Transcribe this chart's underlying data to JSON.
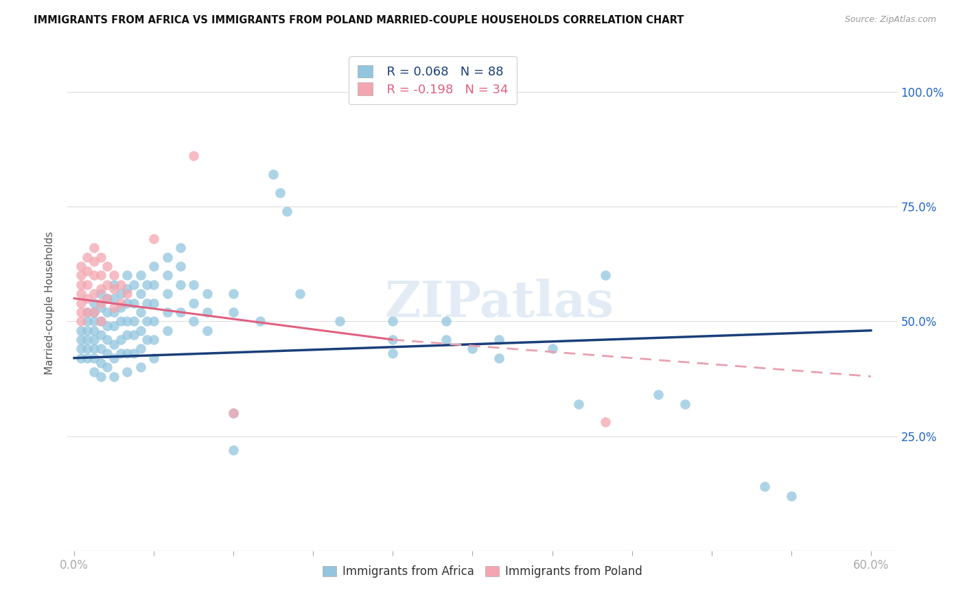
{
  "title": "IMMIGRANTS FROM AFRICA VS IMMIGRANTS FROM POLAND MARRIED-COUPLE HOUSEHOLDS CORRELATION CHART",
  "source": "Source: ZipAtlas.com",
  "ylabel": "Married-couple Households",
  "yticks": [
    0.0,
    0.25,
    0.5,
    0.75,
    1.0
  ],
  "ytick_labels": [
    "",
    "25.0%",
    "50.0%",
    "75.0%",
    "100.0%"
  ],
  "xticks": [
    0.0,
    0.06,
    0.12,
    0.18,
    0.24,
    0.3,
    0.36,
    0.42,
    0.48,
    0.54,
    0.6
  ],
  "xlim": [
    -0.005,
    0.62
  ],
  "ylim": [
    0.0,
    1.08
  ],
  "watermark": "ZIPatlas",
  "africa_color": "#92c5de",
  "poland_color": "#f4a6b0",
  "africa_line_color": "#1a3f7a",
  "poland_line_solid_color": "#e06080",
  "poland_line_dash_color": "#e8a0b0",
  "africa_scatter": [
    [
      0.005,
      0.48
    ],
    [
      0.005,
      0.46
    ],
    [
      0.005,
      0.44
    ],
    [
      0.005,
      0.42
    ],
    [
      0.01,
      0.52
    ],
    [
      0.01,
      0.5
    ],
    [
      0.01,
      0.48
    ],
    [
      0.01,
      0.46
    ],
    [
      0.01,
      0.44
    ],
    [
      0.01,
      0.42
    ],
    [
      0.015,
      0.54
    ],
    [
      0.015,
      0.52
    ],
    [
      0.015,
      0.5
    ],
    [
      0.015,
      0.48
    ],
    [
      0.015,
      0.46
    ],
    [
      0.015,
      0.44
    ],
    [
      0.015,
      0.42
    ],
    [
      0.015,
      0.39
    ],
    [
      0.02,
      0.56
    ],
    [
      0.02,
      0.53
    ],
    [
      0.02,
      0.5
    ],
    [
      0.02,
      0.47
    ],
    [
      0.02,
      0.44
    ],
    [
      0.02,
      0.41
    ],
    [
      0.02,
      0.38
    ],
    [
      0.025,
      0.55
    ],
    [
      0.025,
      0.52
    ],
    [
      0.025,
      0.49
    ],
    [
      0.025,
      0.46
    ],
    [
      0.025,
      0.43
    ],
    [
      0.025,
      0.4
    ],
    [
      0.03,
      0.58
    ],
    [
      0.03,
      0.55
    ],
    [
      0.03,
      0.52
    ],
    [
      0.03,
      0.49
    ],
    [
      0.03,
      0.45
    ],
    [
      0.03,
      0.42
    ],
    [
      0.03,
      0.38
    ],
    [
      0.035,
      0.56
    ],
    [
      0.035,
      0.53
    ],
    [
      0.035,
      0.5
    ],
    [
      0.035,
      0.46
    ],
    [
      0.035,
      0.43
    ],
    [
      0.04,
      0.6
    ],
    [
      0.04,
      0.57
    ],
    [
      0.04,
      0.54
    ],
    [
      0.04,
      0.5
    ],
    [
      0.04,
      0.47
    ],
    [
      0.04,
      0.43
    ],
    [
      0.04,
      0.39
    ],
    [
      0.045,
      0.58
    ],
    [
      0.045,
      0.54
    ],
    [
      0.045,
      0.5
    ],
    [
      0.045,
      0.47
    ],
    [
      0.045,
      0.43
    ],
    [
      0.05,
      0.6
    ],
    [
      0.05,
      0.56
    ],
    [
      0.05,
      0.52
    ],
    [
      0.05,
      0.48
    ],
    [
      0.05,
      0.44
    ],
    [
      0.05,
      0.4
    ],
    [
      0.055,
      0.58
    ],
    [
      0.055,
      0.54
    ],
    [
      0.055,
      0.5
    ],
    [
      0.055,
      0.46
    ],
    [
      0.06,
      0.62
    ],
    [
      0.06,
      0.58
    ],
    [
      0.06,
      0.54
    ],
    [
      0.06,
      0.5
    ],
    [
      0.06,
      0.46
    ],
    [
      0.06,
      0.42
    ],
    [
      0.07,
      0.64
    ],
    [
      0.07,
      0.6
    ],
    [
      0.07,
      0.56
    ],
    [
      0.07,
      0.52
    ],
    [
      0.07,
      0.48
    ],
    [
      0.08,
      0.66
    ],
    [
      0.08,
      0.62
    ],
    [
      0.08,
      0.58
    ],
    [
      0.08,
      0.52
    ],
    [
      0.09,
      0.58
    ],
    [
      0.09,
      0.54
    ],
    [
      0.09,
      0.5
    ],
    [
      0.1,
      0.56
    ],
    [
      0.1,
      0.52
    ],
    [
      0.1,
      0.48
    ],
    [
      0.12,
      0.56
    ],
    [
      0.12,
      0.52
    ],
    [
      0.12,
      0.3
    ],
    [
      0.12,
      0.22
    ],
    [
      0.14,
      0.5
    ],
    [
      0.15,
      0.82
    ],
    [
      0.155,
      0.78
    ],
    [
      0.16,
      0.74
    ],
    [
      0.17,
      0.56
    ],
    [
      0.2,
      0.5
    ],
    [
      0.24,
      0.5
    ],
    [
      0.24,
      0.46
    ],
    [
      0.24,
      0.43
    ],
    [
      0.28,
      0.5
    ],
    [
      0.28,
      0.46
    ],
    [
      0.3,
      0.44
    ],
    [
      0.32,
      0.46
    ],
    [
      0.32,
      0.42
    ],
    [
      0.36,
      0.44
    ],
    [
      0.38,
      0.32
    ],
    [
      0.4,
      0.6
    ],
    [
      0.44,
      0.34
    ],
    [
      0.46,
      0.32
    ],
    [
      0.52,
      0.14
    ],
    [
      0.54,
      0.12
    ]
  ],
  "poland_scatter": [
    [
      0.005,
      0.62
    ],
    [
      0.005,
      0.6
    ],
    [
      0.005,
      0.58
    ],
    [
      0.005,
      0.56
    ],
    [
      0.005,
      0.54
    ],
    [
      0.005,
      0.52
    ],
    [
      0.005,
      0.5
    ],
    [
      0.01,
      0.64
    ],
    [
      0.01,
      0.61
    ],
    [
      0.01,
      0.58
    ],
    [
      0.01,
      0.55
    ],
    [
      0.01,
      0.52
    ],
    [
      0.015,
      0.66
    ],
    [
      0.015,
      0.63
    ],
    [
      0.015,
      0.6
    ],
    [
      0.015,
      0.56
    ],
    [
      0.015,
      0.52
    ],
    [
      0.02,
      0.64
    ],
    [
      0.02,
      0.6
    ],
    [
      0.02,
      0.57
    ],
    [
      0.02,
      0.54
    ],
    [
      0.02,
      0.5
    ],
    [
      0.025,
      0.62
    ],
    [
      0.025,
      0.58
    ],
    [
      0.025,
      0.55
    ],
    [
      0.03,
      0.6
    ],
    [
      0.03,
      0.57
    ],
    [
      0.03,
      0.53
    ],
    [
      0.035,
      0.58
    ],
    [
      0.035,
      0.54
    ],
    [
      0.04,
      0.56
    ],
    [
      0.06,
      0.68
    ],
    [
      0.09,
      0.86
    ],
    [
      0.12,
      0.3
    ],
    [
      0.4,
      0.28
    ]
  ],
  "africa_trendline": [
    0.0,
    0.6,
    0.42,
    0.48
  ],
  "poland_trendline_solid": [
    0.0,
    0.24,
    0.55,
    0.46
  ],
  "poland_trendline_dash": [
    0.24,
    0.6,
    0.46,
    0.38
  ]
}
